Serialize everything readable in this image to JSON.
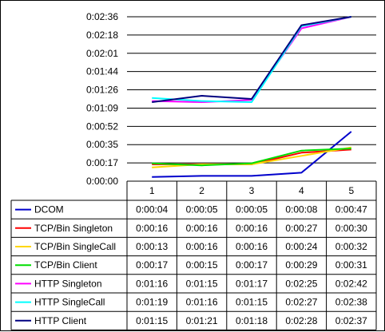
{
  "chart_data": {
    "type": "line",
    "title": "",
    "xlabel": "",
    "ylabel": "",
    "x": [
      "1",
      "2",
      "3",
      "4",
      "5"
    ],
    "y_ticks": [
      "0:00:00",
      "0:00:17",
      "0:00:35",
      "0:00:52",
      "0:01:09",
      "0:01:26",
      "0:01:44",
      "0:02:01",
      "0:02:18",
      "0:02:36"
    ],
    "ylim_seconds": [
      0,
      156
    ],
    "grid": "horizontal",
    "legend": "data-table",
    "series": [
      {
        "name": "DCOM",
        "color": "#0000CC",
        "values": [
          "0:00:04",
          "0:00:05",
          "0:00:05",
          "0:00:08",
          "0:00:47"
        ],
        "seconds": [
          4,
          5,
          5,
          8,
          47
        ]
      },
      {
        "name": "TCP/Bin Singleton",
        "color": "#FF0000",
        "values": [
          "0:00:16",
          "0:00:16",
          "0:00:16",
          "0:00:27",
          "0:00:30"
        ],
        "seconds": [
          16,
          16,
          16,
          27,
          30
        ]
      },
      {
        "name": "TCP/Bin SingleCall",
        "color": "#FFD700",
        "values": [
          "0:00:13",
          "0:00:16",
          "0:00:16",
          "0:00:24",
          "0:00:32"
        ],
        "seconds": [
          13,
          16,
          16,
          24,
          32
        ]
      },
      {
        "name": "TCP/Bin Client",
        "color": "#00DD00",
        "values": [
          "0:00:17",
          "0:00:15",
          "0:00:17",
          "0:00:29",
          "0:00:31"
        ],
        "seconds": [
          17,
          15,
          17,
          29,
          31
        ]
      },
      {
        "name": "HTTP Singleton",
        "color": "#FF00FF",
        "values": [
          "0:01:16",
          "0:01:15",
          "0:01:17",
          "0:02:25",
          "0:02:42"
        ],
        "seconds": [
          76,
          75,
          77,
          145,
          162
        ]
      },
      {
        "name": "HTTP SingleCall",
        "color": "#00FFFF",
        "values": [
          "0:01:19",
          "0:01:16",
          "0:01:15",
          "0:02:27",
          "0:02:38"
        ],
        "seconds": [
          79,
          76,
          75,
          147,
          158
        ]
      },
      {
        "name": "HTTP Client",
        "color": "#000080",
        "values": [
          "0:01:15",
          "0:01:21",
          "0:01:18",
          "0:02:28",
          "0:02:37"
        ],
        "seconds": [
          75,
          81,
          78,
          148,
          157
        ]
      }
    ]
  }
}
